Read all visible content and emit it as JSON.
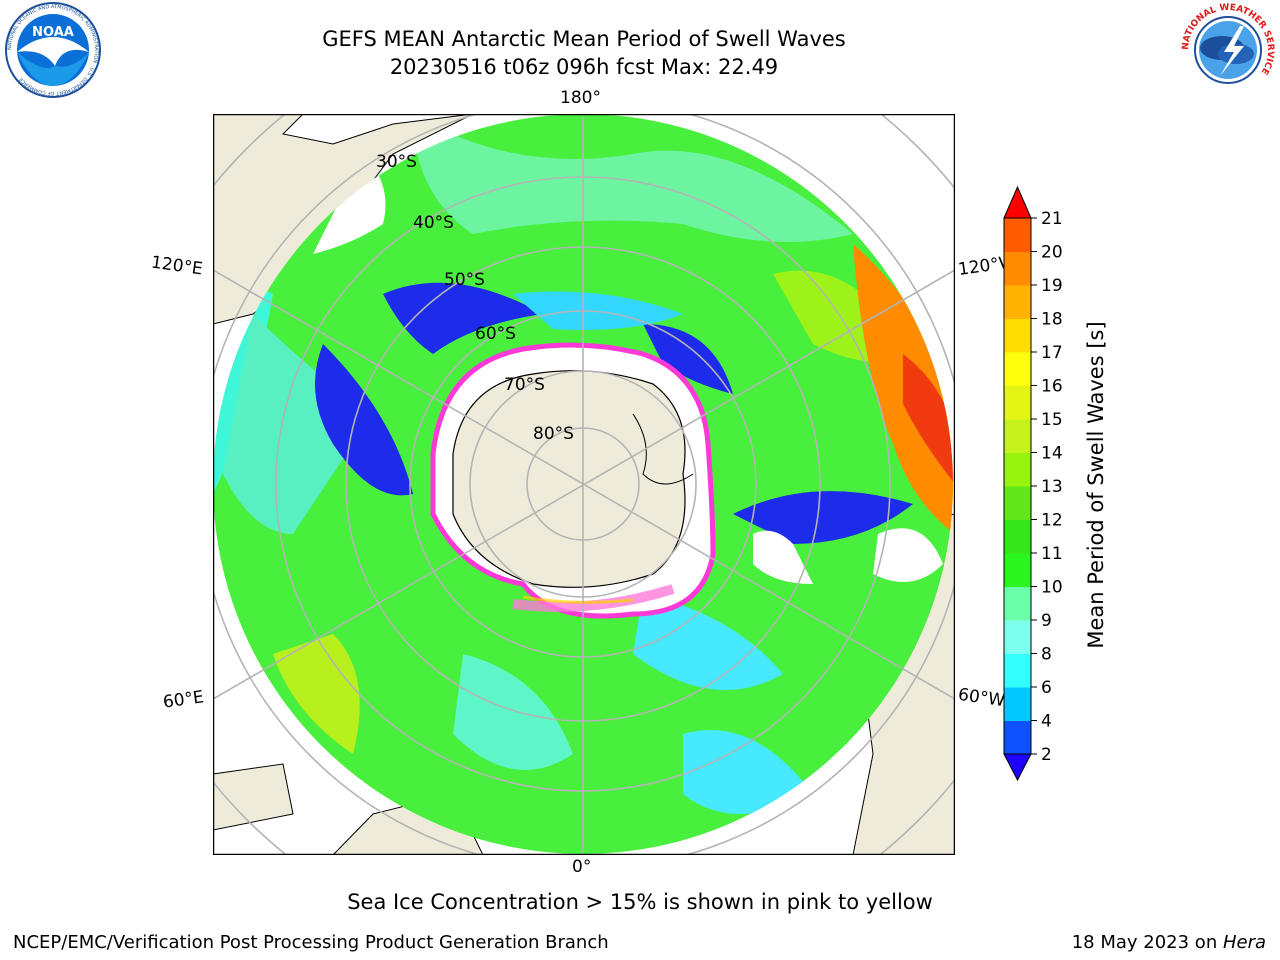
{
  "title": {
    "line1": "GEFS MEAN Antarctic Mean Period of Swell Waves",
    "line2": "20230516 t06z 096h fcst   Max: 22.49"
  },
  "logos": {
    "left": {
      "name": "NOAA",
      "ring_text": "NATIONAL OCEANIC AND ATMOSPHERIC ADMINISTRATION · U.S. DEPARTMENT OF COMMERCE"
    },
    "right": {
      "name": "National Weather Service",
      "ring_text": "NATIONAL WEATHER SERVICE"
    }
  },
  "map": {
    "projection": "south polar stereographic",
    "lon_labels": {
      "top": "180°",
      "bottom": "0°",
      "left_upper": "120°E",
      "left_lower": "60°E",
      "right_upper": "120°W",
      "right_lower": "60°W"
    },
    "lat_labels": [
      "30°S",
      "40°S",
      "50°S",
      "60°S",
      "70°S",
      "80°S"
    ]
  },
  "colorbar": {
    "label": "Mean Period of Swell Waves [s]",
    "ticks": [
      "2",
      "4",
      "6",
      "8",
      "9",
      "10",
      "11",
      "12",
      "13",
      "14",
      "15",
      "16",
      "17",
      "18",
      "19",
      "20",
      "21"
    ],
    "colors": [
      "#0f51ff",
      "#00c8ff",
      "#34ffff",
      "#7fffef",
      "#6cffa9",
      "#2bf51e",
      "#36e51a",
      "#62e81a",
      "#98f40f",
      "#c4f21a",
      "#e4f513",
      "#fffe0b",
      "#ffdd00",
      "#ffb300",
      "#ff8c00",
      "#ff5c00",
      "#ff2a00",
      "#e30000"
    ],
    "extend_low_color": "#1e00ff",
    "extend_high_color": "#ff0000"
  },
  "caption": "Sea Ice Concentration > 15% is shown in pink to yellow",
  "footer": {
    "left": "NCEP/EMC/Verification Post Processing Product Generation Branch",
    "right_prefix": "18 May 2023 on ",
    "right_host": "Hera"
  }
}
